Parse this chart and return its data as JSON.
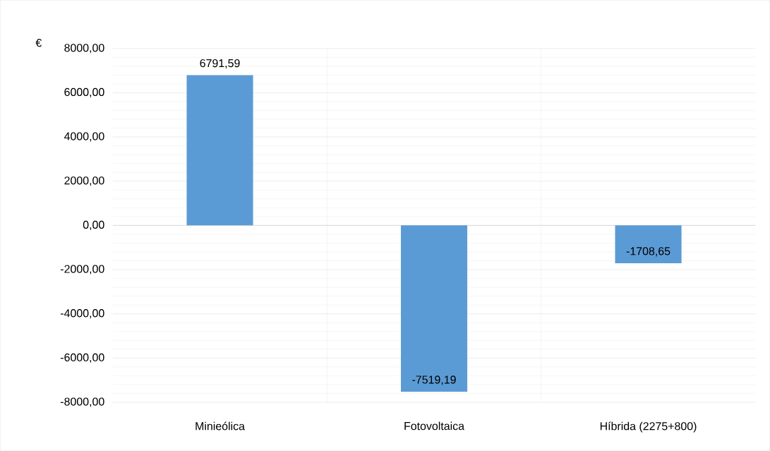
{
  "chart_data": {
    "type": "bar",
    "ylabel": "€",
    "categories": [
      "Minieólica",
      "Fotovoltaica",
      "Híbrida (2275+800)"
    ],
    "values": [
      6791.59,
      -7519.19,
      -1708.65
    ],
    "value_labels": [
      "6791,59",
      "-7519,19",
      "-1708,65"
    ],
    "color": "#5b9bd5",
    "ylim": [
      -8000,
      8000
    ],
    "yticks": [
      {
        "value": -8000,
        "label": "-8000,00"
      },
      {
        "value": -6000,
        "label": "-6000,00"
      },
      {
        "value": -4000,
        "label": "-4000,00"
      },
      {
        "value": -2000,
        "label": "-2000,00"
      },
      {
        "value": 0,
        "label": "0,00"
      },
      {
        "value": 2000,
        "label": "2000,00"
      },
      {
        "value": 4000,
        "label": "4000,00"
      },
      {
        "value": 6000,
        "label": "6000,00"
      },
      {
        "value": 8000,
        "label": "8000,00"
      }
    ],
    "grid": true
  }
}
